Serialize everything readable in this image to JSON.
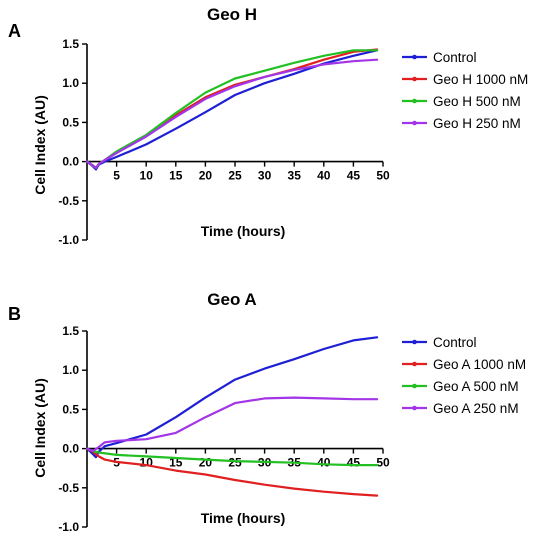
{
  "figure": {
    "panels": [
      {
        "letter": "A",
        "chart_index": 0
      },
      {
        "letter": "B",
        "chart_index": 1
      }
    ]
  },
  "chart_data": [
    {
      "type": "line",
      "title": "Geo H",
      "xlabel": "Time (hours)",
      "ylabel": "Cell Index (AU)",
      "xlim": [
        0,
        50
      ],
      "ylim": [
        -1.0,
        1.5
      ],
      "xticks": [
        "5",
        "10",
        "15",
        "20",
        "25",
        "30",
        "35",
        "40",
        "45",
        "50"
      ],
      "yticks": [
        "1.5",
        "1.0",
        "0.5",
        "0.0",
        "-0.5",
        "-1.0"
      ],
      "grid": false,
      "legend_position": "right",
      "series": [
        {
          "name": "Control",
          "color": "#1f1fd6",
          "points": [
            [
              0,
              0
            ],
            [
              1,
              -0.06
            ],
            [
              1.5,
              -0.1
            ],
            [
              2,
              -0.04
            ],
            [
              3,
              0
            ],
            [
              5,
              0.06
            ],
            [
              10,
              0.22
            ],
            [
              15,
              0.42
            ],
            [
              20,
              0.63
            ],
            [
              25,
              0.85
            ],
            [
              30,
              1.0
            ],
            [
              35,
              1.12
            ],
            [
              40,
              1.25
            ],
            [
              45,
              1.35
            ],
            [
              49,
              1.42
            ]
          ]
        },
        {
          "name": "Geo H 1000 nM",
          "color": "#e02020",
          "points": [
            [
              0,
              0
            ],
            [
              1,
              -0.05
            ],
            [
              1.5,
              -0.08
            ],
            [
              2,
              -0.03
            ],
            [
              3,
              0.02
            ],
            [
              5,
              0.12
            ],
            [
              10,
              0.33
            ],
            [
              15,
              0.59
            ],
            [
              20,
              0.82
            ],
            [
              25,
              0.98
            ],
            [
              30,
              1.08
            ],
            [
              35,
              1.18
            ],
            [
              40,
              1.3
            ],
            [
              45,
              1.4
            ],
            [
              49,
              1.43
            ]
          ]
        },
        {
          "name": "Geo H 500 nM",
          "color": "#22c022",
          "points": [
            [
              0,
              0
            ],
            [
              1,
              -0.05
            ],
            [
              1.5,
              -0.08
            ],
            [
              2,
              -0.03
            ],
            [
              3,
              0.02
            ],
            [
              5,
              0.13
            ],
            [
              10,
              0.34
            ],
            [
              15,
              0.62
            ],
            [
              20,
              0.88
            ],
            [
              25,
              1.06
            ],
            [
              30,
              1.16
            ],
            [
              35,
              1.26
            ],
            [
              40,
              1.35
            ],
            [
              45,
              1.42
            ],
            [
              49,
              1.42
            ]
          ]
        },
        {
          "name": "Geo H 250 nM",
          "color": "#a235e8",
          "points": [
            [
              0,
              0
            ],
            [
              1,
              -0.05
            ],
            [
              1.5,
              -0.08
            ],
            [
              2,
              -0.03
            ],
            [
              3,
              0.02
            ],
            [
              5,
              0.11
            ],
            [
              10,
              0.32
            ],
            [
              15,
              0.57
            ],
            [
              20,
              0.8
            ],
            [
              25,
              0.96
            ],
            [
              30,
              1.08
            ],
            [
              35,
              1.17
            ],
            [
              40,
              1.24
            ],
            [
              45,
              1.28
            ],
            [
              49,
              1.3
            ]
          ]
        }
      ]
    },
    {
      "type": "line",
      "title": "Geo A",
      "xlabel": "Time (hours)",
      "ylabel": "Cell Index (AU)",
      "xlim": [
        0,
        50
      ],
      "ylim": [
        -1.0,
        1.5
      ],
      "xticks": [
        "5",
        "10",
        "15",
        "20",
        "25",
        "30",
        "35",
        "40",
        "45",
        "50"
      ],
      "yticks": [
        "1.5",
        "1.0",
        "0.5",
        "0.0",
        "-0.5",
        "-1.0"
      ],
      "grid": false,
      "legend_position": "right",
      "series": [
        {
          "name": "Control",
          "color": "#1f1fd6",
          "points": [
            [
              0,
              0
            ],
            [
              1,
              -0.07
            ],
            [
              1.5,
              -0.11
            ],
            [
              2,
              -0.04
            ],
            [
              3,
              0.03
            ],
            [
              5,
              0.07
            ],
            [
              10,
              0.18
            ],
            [
              15,
              0.4
            ],
            [
              20,
              0.65
            ],
            [
              25,
              0.88
            ],
            [
              30,
              1.02
            ],
            [
              35,
              1.14
            ],
            [
              40,
              1.27
            ],
            [
              45,
              1.38
            ],
            [
              49,
              1.42
            ]
          ]
        },
        {
          "name": "Geo A 1000 nM",
          "color": "#e02020",
          "points": [
            [
              0,
              0
            ],
            [
              1,
              -0.04
            ],
            [
              2,
              -0.1
            ],
            [
              3,
              -0.14
            ],
            [
              5,
              -0.17
            ],
            [
              10,
              -0.21
            ],
            [
              15,
              -0.28
            ],
            [
              20,
              -0.33
            ],
            [
              25,
              -0.4
            ],
            [
              30,
              -0.46
            ],
            [
              35,
              -0.51
            ],
            [
              40,
              -0.55
            ],
            [
              45,
              -0.58
            ],
            [
              49,
              -0.6
            ]
          ]
        },
        {
          "name": "Geo A 500 nM",
          "color": "#22c022",
          "points": [
            [
              0,
              0
            ],
            [
              1,
              -0.03
            ],
            [
              2,
              -0.05
            ],
            [
              5,
              -0.08
            ],
            [
              10,
              -0.1
            ],
            [
              15,
              -0.12
            ],
            [
              20,
              -0.14
            ],
            [
              25,
              -0.16
            ],
            [
              30,
              -0.17
            ],
            [
              35,
              -0.18
            ],
            [
              40,
              -0.2
            ],
            [
              45,
              -0.21
            ],
            [
              49,
              -0.21
            ]
          ]
        },
        {
          "name": "Geo A 250 nM",
          "color": "#a235e8",
          "points": [
            [
              0,
              0
            ],
            [
              1,
              -0.03
            ],
            [
              2,
              0.02
            ],
            [
              3,
              0.08
            ],
            [
              5,
              0.1
            ],
            [
              10,
              0.12
            ],
            [
              15,
              0.2
            ],
            [
              20,
              0.4
            ],
            [
              25,
              0.58
            ],
            [
              30,
              0.64
            ],
            [
              35,
              0.65
            ],
            [
              40,
              0.64
            ],
            [
              45,
              0.63
            ],
            [
              49,
              0.63
            ]
          ]
        }
      ]
    }
  ]
}
